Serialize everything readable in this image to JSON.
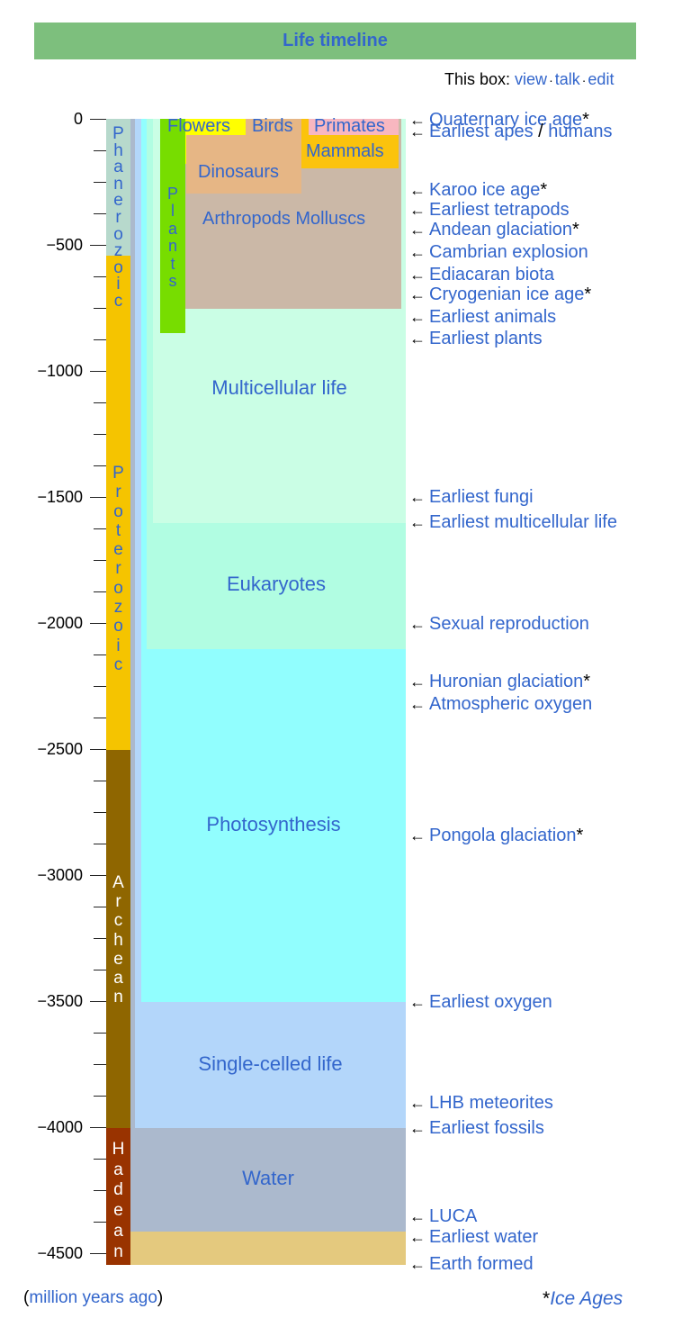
{
  "title": "Life timeline",
  "box_nav": {
    "prefix": "This box:",
    "view": "view",
    "talk": "talk",
    "edit": "edit",
    "separator": "·"
  },
  "axis": {
    "unit_label": "million years ago",
    "range": [
      0,
      -4540
    ],
    "labeled_ticks": [
      "0",
      "−500",
      "−1000",
      "−1500",
      "−2000",
      "−2500",
      "−3000",
      "−3500",
      "−4000",
      "−4500"
    ]
  },
  "eons": [
    {
      "name": "Phanerozoic",
      "letters": "P\nh\na\nn\ne\nr\no\nz\no\ni\nc",
      "start": -541,
      "end": 0,
      "color": "#b7d9cc",
      "text_color": "#3366cc"
    },
    {
      "name": "Proterozoic",
      "letters": "P\nr\no\nt\ne\nr\no\nz\no\ni\nc",
      "start": -2500,
      "end": -541,
      "color": "#f5c400",
      "text_color": "#3366cc"
    },
    {
      "name": "Archean",
      "letters": "A\nr\nc\nh\ne\na\nn",
      "start": -4000,
      "end": -2500,
      "color": "#8f6600",
      "text_color": "#ffffff"
    },
    {
      "name": "Hadean",
      "letters": "H\na\nd\ne\na\nn",
      "start": -4540,
      "end": -4000,
      "color": "#993300",
      "text_color": "#ffffff"
    }
  ],
  "life_regions": [
    {
      "name": "Multicellular life",
      "label": "Multicellular life"
    },
    {
      "name": "Eukaryotes",
      "label": "Eukaryotes"
    },
    {
      "name": "Photosynthesis",
      "label": "Photosynthesis"
    },
    {
      "name": "Single-celled life",
      "label": "Single-celled life"
    },
    {
      "name": "Water",
      "label": "Water"
    }
  ],
  "phanerozoic_groups": {
    "flowers": "Flowers",
    "birds": "Birds",
    "primates": "Primates",
    "mammals": "Mammals",
    "dinosaurs": "Dinosaurs",
    "arthropods": "Arthropods Molluscs",
    "plants": "P\nl\na\nn\nt\ns"
  },
  "events": [
    {
      "label": "Quaternary ice age",
      "star": "*",
      "time": -3
    },
    {
      "label": "Earliest apes",
      "label2": "humans",
      "sep": " / ",
      "time": -15
    },
    {
      "label": "Karoo ice age",
      "star": "*",
      "time": -300
    },
    {
      "label": "Earliest tetrapods",
      "time": -370
    },
    {
      "label": "Andean glaciation",
      "star": "*",
      "time": -445
    },
    {
      "label": "Cambrian explosion",
      "time": -541
    },
    {
      "label": "Ediacaran biota",
      "time": -635
    },
    {
      "label": "Cryogenian ice age",
      "star": "*",
      "time": -680
    },
    {
      "label": "Earliest animals",
      "time": -750
    },
    {
      "label": "Earliest plants",
      "time": -850
    },
    {
      "label": "Earliest fungi",
      "time": -1500
    },
    {
      "label": "Earliest multicellular life",
      "time": -1600
    },
    {
      "label": "Sexual reproduction",
      "time": -2000
    },
    {
      "label": "Huronian glaciation",
      "star": "*",
      "time": -2250
    },
    {
      "label": "Atmospheric oxygen",
      "time": -2300
    },
    {
      "label": "Pongola glaciation",
      "star": "*",
      "time": -2850
    },
    {
      "label": "Earliest oxygen",
      "time": -3500
    },
    {
      "label": "LHB meteorites",
      "time": -3900
    },
    {
      "label": "Earliest fossils",
      "time": -4000
    },
    {
      "label": "LUCA",
      "time": -4350
    },
    {
      "label": "Earliest water",
      "time": -4400
    },
    {
      "label": "Earth formed",
      "time": -4540
    }
  ],
  "footer": {
    "open": "(",
    "unit_link": "million years ago",
    "close": ")",
    "star": "*",
    "ice_ages": "Ice Ages"
  },
  "colors": {
    "link": "#3366cc",
    "title_bg": "#7dbf7d"
  }
}
